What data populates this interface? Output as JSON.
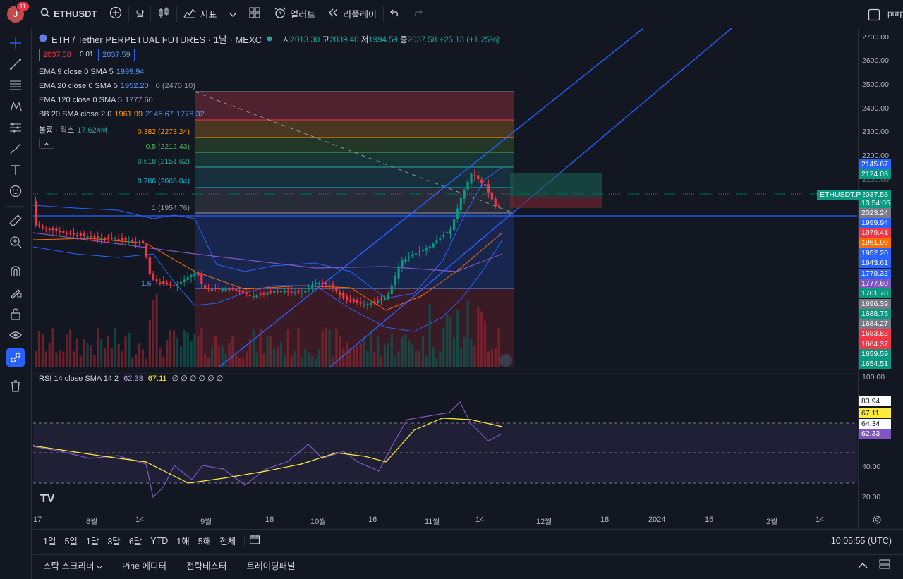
{
  "topbar": {
    "avatar_letter": "J",
    "notif_count": "11",
    "symbol": "ETHUSDT",
    "interval": "날",
    "indicators_label": "지표",
    "alert_label": "얼러트",
    "replay_label": "리플레이",
    "user_label": "purp"
  },
  "header": {
    "title": "ETH / Tether PERPETUAL FUTURES · 1날 · MEXC",
    "o_label": "시",
    "o_val": "2013.30",
    "h_label": "고",
    "h_val": "2039.40",
    "l_label": "저",
    "l_val": "1994.59",
    "c_label": "종",
    "c_val": "2037.58",
    "change": "+25.13 (+1.25%)",
    "bid": "2037.58",
    "spread": "0.01",
    "ask": "2037.59"
  },
  "legends": {
    "ema9": {
      "label": "EMA 9 close 0 SMA 5",
      "value": "1999.94"
    },
    "ema20": {
      "label": "EMA 20 close 0 SMA 5",
      "value": "1952.20"
    },
    "ema120": {
      "label": "EMA 120 close 0 SMA 5",
      "value": "1777.60"
    },
    "bb": {
      "label": "BB 20 SMA close 2 0",
      "v1": "1961.99",
      "v2": "2145.67",
      "v3": "1778.32"
    },
    "vol": {
      "label": "볼륨 · 틱스",
      "value": "17.624M"
    },
    "fib_top": "0 (2470.10)"
  },
  "fib_levels": [
    {
      "label": "0.382 (2273.24)",
      "color": "#ff9800"
    },
    {
      "label": "0.5 (2212.43)",
      "color": "#4caf50"
    },
    {
      "label": "0.618 (2151.62)",
      "color": "#26a69a"
    },
    {
      "label": "0.786 (2065.04)",
      "color": "#00bcd4"
    },
    {
      "label": "1 (1954.76)",
      "color": "#9598a1"
    },
    {
      "label": "1.6",
      "color": "#5b9cf6"
    }
  ],
  "price_axis": [
    "2700.00",
    "2600.00",
    "2500.00",
    "2400.00",
    "2300.00",
    "2200.00",
    "2100.00"
  ],
  "price_tags": [
    {
      "text": "2145.67",
      "color": "#2962ff"
    },
    {
      "text": "2124.03",
      "color": "#089981"
    },
    {
      "text": "2037.58",
      "color": "#089981"
    },
    {
      "text": "13:54:05",
      "color": "#089981"
    },
    {
      "text": "2023.24",
      "color": "#787b86"
    },
    {
      "text": "1999.94",
      "color": "#2962ff"
    },
    {
      "text": "1979.41",
      "color": "#f23645"
    },
    {
      "text": "1961.99",
      "color": "#ff6d00"
    },
    {
      "text": "1952.20",
      "color": "#2962ff"
    },
    {
      "text": "1943.61",
      "color": "#2962ff"
    },
    {
      "text": "1778.32",
      "color": "#2962ff"
    },
    {
      "text": "1777.60",
      "color": "#7e57c2"
    },
    {
      "text": "1701.78",
      "color": "#089981"
    },
    {
      "text": "1696.39",
      "color": "#787b86"
    },
    {
      "text": "1688.75",
      "color": "#089981"
    },
    {
      "text": "1684.27",
      "color": "#787b86"
    },
    {
      "text": "1683.82",
      "color": "#f23645"
    },
    {
      "text": "1664.37",
      "color": "#f23645"
    },
    {
      "text": "1659.59",
      "color": "#089981"
    },
    {
      "text": "1654.51",
      "color": "#089981"
    }
  ],
  "symbol_tag": "ETHUSDT.P",
  "rsi": {
    "legend_label": "RSI 14 close SMA 14 2",
    "v1": "62.33",
    "v2": "67.11",
    "zeros": "∅ ∅ ∅ ∅ ∅ ∅",
    "axis": [
      "100.00",
      "40.00",
      "20.00"
    ],
    "tags": [
      {
        "text": "83.94",
        "bg": "#ffffff",
        "fg": "#131722"
      },
      {
        "text": "67.11",
        "bg": "#ffeb3b",
        "fg": "#131722"
      },
      {
        "text": "64.34",
        "bg": "#ffffff",
        "fg": "#131722"
      },
      {
        "text": "62.33",
        "bg": "#7e57c2",
        "fg": "#ffffff"
      }
    ]
  },
  "time_axis": [
    {
      "label": "17"
    },
    {
      "label": "8월"
    },
    {
      "label": "14"
    },
    {
      "label": "9월"
    },
    {
      "label": "18"
    },
    {
      "label": "10월"
    },
    {
      "label": "16"
    },
    {
      "label": "11월"
    },
    {
      "label": "14"
    },
    {
      "label": "12월"
    },
    {
      "label": "18"
    },
    {
      "label": "2024"
    },
    {
      "label": "15"
    },
    {
      "label": "2월"
    },
    {
      "label": "14"
    }
  ],
  "ranges": [
    "1일",
    "5일",
    "1달",
    "3달",
    "6달",
    "YTD",
    "1해",
    "5해",
    "전체"
  ],
  "clock": "10:05:55 (UTC)",
  "bottom_tabs": [
    "스탁 스크리너",
    "Pine 에디터",
    "전략테스터",
    "트레이딩패널"
  ]
}
